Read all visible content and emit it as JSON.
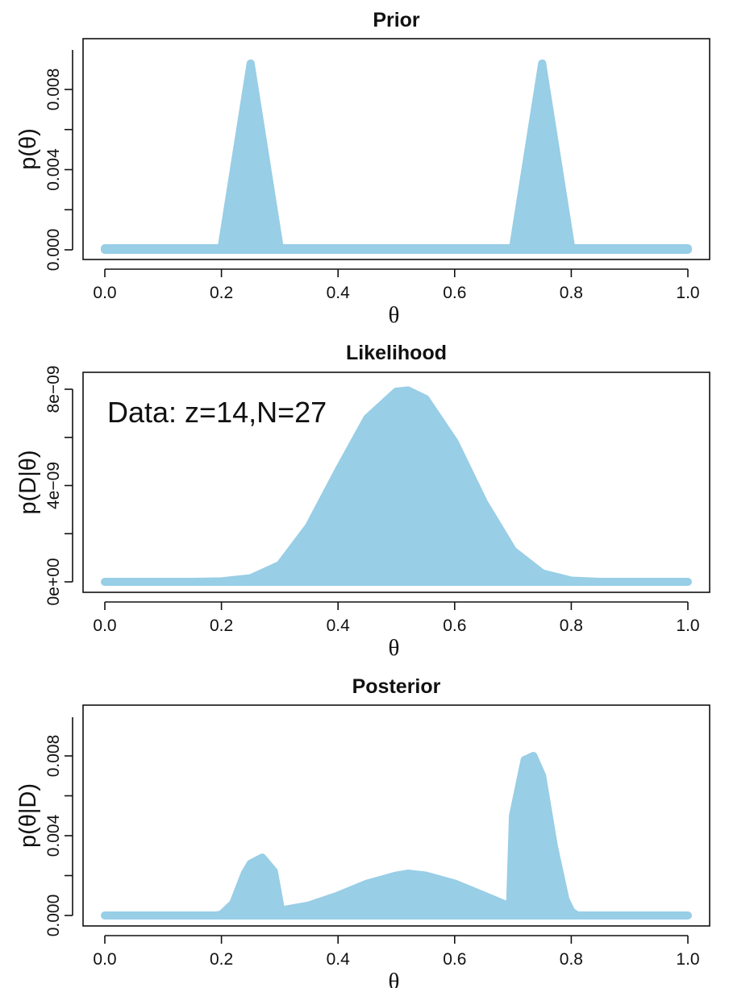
{
  "chart_data": [
    {
      "type": "area",
      "title": "Prior",
      "xlabel": "θ",
      "ylabel": "p(θ)",
      "xlim": [
        0,
        1
      ],
      "ylim": [
        0,
        0.01
      ],
      "x_ticks": [
        "0.0",
        "0.2",
        "0.4",
        "0.6",
        "0.8",
        "1.0"
      ],
      "y_ticks": [
        "0.000",
        "0.004",
        "0.008"
      ],
      "color": "#98CEE6",
      "series": [
        {
          "x": [
            0,
            0.195,
            0.2,
            0.25,
            0.3,
            0.305,
            0.695,
            0.7,
            0.75,
            0.8,
            0.805,
            1
          ],
          "y": [
            8e-05,
            8e-05,
            8e-05,
            0.0093,
            8e-05,
            8e-05,
            8e-05,
            8e-05,
            0.0093,
            8e-05,
            8e-05,
            8e-05
          ]
        }
      ]
    },
    {
      "type": "area",
      "title": "Likelihood",
      "xlabel": "θ",
      "ylabel": "p(D|θ)",
      "xlim": [
        0,
        1
      ],
      "ylim": [
        0,
        9.5e-09
      ],
      "x_ticks": [
        "0.0",
        "0.2",
        "0.4",
        "0.6",
        "0.8",
        "1.0"
      ],
      "y_ticks": [
        "0e+00",
        "4e−09",
        "8e−09"
      ],
      "annotation": "Data: z=14,N=27",
      "color": "#98CEE6",
      "series": [
        {
          "x": [
            0,
            0.15,
            0.2,
            0.25,
            0.3,
            0.35,
            0.4,
            0.45,
            0.5,
            0.52,
            0.55,
            0.6,
            0.65,
            0.7,
            0.75,
            0.8,
            0.85,
            1
          ],
          "y": [
            0,
            0,
            2e-11,
            1.5e-10,
            7e-10,
            2.3e-09,
            4.6e-09,
            6.8e-09,
            7.9e-09,
            7.95e-09,
            7.6e-09,
            5.8e-09,
            3.3e-09,
            1.3e-09,
            3.5e-10,
            5e-11,
            0,
            0
          ]
        }
      ]
    },
    {
      "type": "area",
      "title": "Posterior",
      "xlabel": "θ",
      "ylabel": "p(θ|D)",
      "xlim": [
        0,
        1
      ],
      "ylim": [
        0,
        0.01
      ],
      "x_ticks": [
        "0.0",
        "0.2",
        "0.4",
        "0.6",
        "0.8",
        "1.0"
      ],
      "y_ticks": [
        "0.000",
        "0.004",
        "0.008"
      ],
      "color": "#98CEE6",
      "series": [
        {
          "x": [
            0,
            0.19,
            0.2,
            0.22,
            0.24,
            0.25,
            0.27,
            0.29,
            0.3,
            0.302,
            0.35,
            0.4,
            0.45,
            0.5,
            0.52,
            0.55,
            0.6,
            0.65,
            0.695,
            0.7,
            0.72,
            0.735,
            0.75,
            0.77,
            0.79,
            0.8,
            0.81,
            1
          ],
          "y": [
            0,
            0,
            5e-05,
            0.0006,
            0.0021,
            0.0026,
            0.0029,
            0.0022,
            0.0006,
            0.00025,
            0.0005,
            0.001,
            0.0016,
            0.002,
            0.0021,
            0.002,
            0.0016,
            0.001,
            0.00045,
            0.005,
            0.0078,
            0.008,
            0.007,
            0.0035,
            0.0008,
            0.0002,
            0,
            0
          ]
        }
      ]
    }
  ]
}
